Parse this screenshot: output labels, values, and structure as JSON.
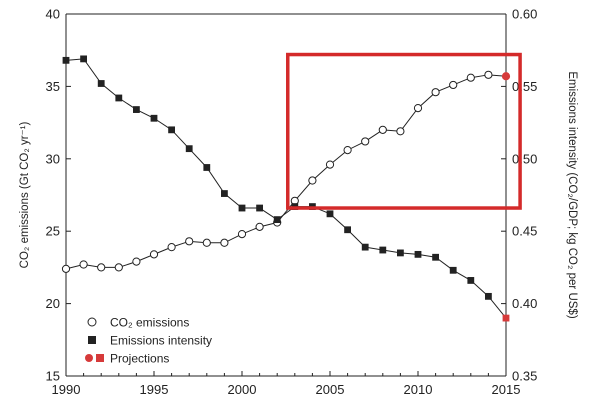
{
  "chart_data": {
    "type": "line",
    "x": [
      1990,
      1991,
      1992,
      1993,
      1994,
      1995,
      1996,
      1997,
      1998,
      1999,
      2000,
      2001,
      2002,
      2003,
      2004,
      2005,
      2006,
      2007,
      2008,
      2009,
      2010,
      2011,
      2012,
      2013,
      2014,
      2015
    ],
    "xlim": [
      1990,
      2015
    ],
    "x_ticks": [
      "1990",
      "1995",
      "2000",
      "2005",
      "2010",
      "2015"
    ],
    "ylabel_left": "CO₂ emissions (Gt CO₂ yr⁻¹)",
    "ylim_left": [
      15,
      40
    ],
    "y_ticks_left": [
      "15",
      "20",
      "25",
      "30",
      "35",
      "40"
    ],
    "ylabel_right": "Emissions intensity (CO₂/GDP; kg CO₂ per US$)",
    "ylim_right": [
      0.35,
      0.6
    ],
    "y_ticks_right": [
      "0.35",
      "0.40",
      "0.45",
      "0.50",
      "0.55",
      "0.60"
    ],
    "grid": false,
    "series": [
      {
        "name": "CO₂ emissions",
        "axis": "left",
        "marker": "open-circle",
        "values": [
          22.4,
          22.7,
          22.5,
          22.5,
          22.9,
          23.4,
          23.9,
          24.3,
          24.2,
          24.2,
          24.8,
          25.3,
          25.6,
          27.1,
          28.5,
          29.6,
          30.6,
          31.2,
          32.0,
          31.9,
          33.5,
          34.6,
          35.1,
          35.6,
          35.8,
          35.7
        ]
      },
      {
        "name": "Emissions intensity",
        "axis": "right",
        "marker": "filled-square",
        "values": [
          0.568,
          0.569,
          0.552,
          0.542,
          0.534,
          0.528,
          0.52,
          0.507,
          0.494,
          0.476,
          0.466,
          0.466,
          0.458,
          0.467,
          0.467,
          0.462,
          0.451,
          0.439,
          0.437,
          0.435,
          0.434,
          0.432,
          0.423,
          0.416,
          0.405,
          0.39
        ]
      }
    ],
    "projections": {
      "name": "Projections",
      "color": "#d63a3a",
      "year": 2015
    },
    "highlight_box": {
      "color": "#d42a2a",
      "x_range": [
        2002.6,
        2015.8
      ],
      "left_y_range": [
        26.6,
        37.2
      ]
    },
    "legend": {
      "position": "bottom-left",
      "entries": [
        {
          "label": "CO₂ emissions",
          "marker": "open-circle"
        },
        {
          "label": "Emissions intensity",
          "marker": "filled-square"
        },
        {
          "label": "Projections",
          "marker": "red-circle-square"
        }
      ]
    },
    "colors": {
      "line": "#222222",
      "marker": "#222222",
      "projection": "#d63a3a",
      "highlight": "#d42a2a"
    }
  }
}
